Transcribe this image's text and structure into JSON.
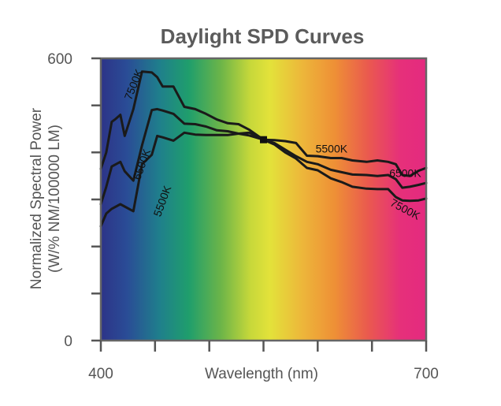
{
  "chart_data": {
    "type": "line",
    "title": "Daylight SPD Curves",
    "xlabel": "Wavelength (nm)",
    "ylabel_line1": "Normalized Spectral Power",
    "ylabel_line2": "(W/% NM/100000 LM)",
    "xlim": [
      400,
      700
    ],
    "ylim": [
      0,
      600
    ],
    "x_tick_values": [
      400,
      450,
      500,
      550,
      600,
      650,
      700
    ],
    "x_tick_labels": [
      "400",
      "",
      "",
      "",
      "",
      "",
      "700"
    ],
    "y_tick_values": [
      0,
      100,
      200,
      300,
      400,
      500,
      600
    ],
    "y_tick_labels": [
      "0",
      "",
      "",
      "",
      "",
      "",
      "600"
    ],
    "background": "visible-spectrum gradient",
    "crossover_point": {
      "x": 550,
      "y": 427
    },
    "series": [
      {
        "name": "7500K",
        "x": [
          400,
          405,
          410,
          413,
          418,
          422,
          430,
          438,
          447,
          452,
          457,
          467,
          477,
          487,
          497,
          507,
          517,
          527,
          537,
          550,
          560,
          570,
          580,
          590,
          600,
          612,
          622,
          632,
          645,
          655,
          665,
          672,
          678,
          685,
          693,
          700
        ],
        "y": [
          365,
          400,
          465,
          470,
          480,
          435,
          492,
          572,
          570,
          560,
          540,
          540,
          497,
          492,
          482,
          470,
          462,
          460,
          448,
          427,
          417,
          400,
          387,
          367,
          362,
          345,
          337,
          327,
          323,
          322,
          322,
          305,
          298,
          297,
          298,
          302
        ]
      },
      {
        "name": "6500K",
        "x": [
          400,
          405,
          410,
          418,
          422,
          430,
          438,
          447,
          452,
          457,
          467,
          477,
          487,
          497,
          507,
          517,
          527,
          537,
          550,
          560,
          570,
          580,
          590,
          600,
          612,
          622,
          632,
          645,
          655,
          665,
          672,
          678,
          685,
          693,
          700
        ],
        "y": [
          290,
          327,
          370,
          380,
          360,
          340,
          415,
          490,
          492,
          489,
          482,
          461,
          460,
          455,
          447,
          445,
          440,
          436,
          427,
          420,
          406,
          392,
          380,
          375,
          363,
          358,
          353,
          352,
          350,
          352,
          343,
          325,
          327,
          331,
          335
        ]
      },
      {
        "name": "5500K",
        "x": [
          400,
          405,
          410,
          418,
          422,
          430,
          438,
          447,
          452,
          457,
          467,
          477,
          487,
          497,
          507,
          517,
          527,
          537,
          550,
          560,
          570,
          580,
          590,
          600,
          612,
          622,
          632,
          645,
          655,
          665,
          672,
          678,
          685,
          693,
          700
        ],
        "y": [
          243,
          270,
          280,
          290,
          285,
          275,
          375,
          395,
          435,
          432,
          425,
          442,
          438,
          437,
          437,
          437,
          440,
          442,
          427,
          426,
          424,
          420,
          393,
          392,
          388,
          388,
          383,
          380,
          383,
          380,
          375,
          352,
          350,
          361,
          367
        ]
      }
    ],
    "annotations": [
      {
        "text": "7500K",
        "x": 428,
        "y": 510,
        "rotate": -68
      },
      {
        "text": "6500K",
        "x": 436,
        "y": 340,
        "rotate": -70
      },
      {
        "text": "5500K",
        "x": 455,
        "y": 262,
        "rotate": -70
      },
      {
        "text": "5500K",
        "x": 598,
        "y": 400,
        "rotate": 0
      },
      {
        "text": "6500K",
        "x": 666,
        "y": 348,
        "rotate": 0
      },
      {
        "text": "7500K",
        "x": 666,
        "y": 288,
        "rotate": 28
      }
    ]
  }
}
